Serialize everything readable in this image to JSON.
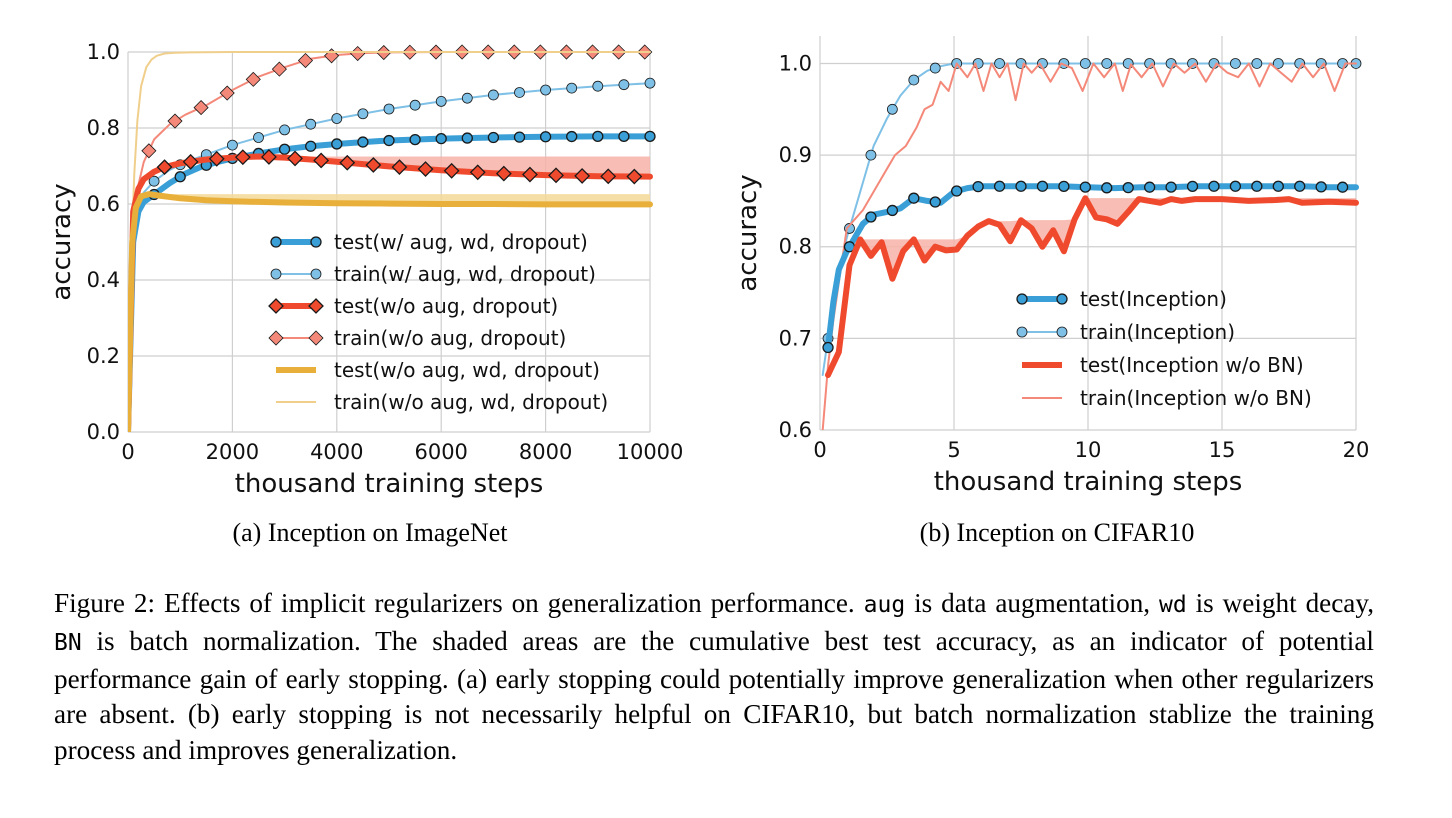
{
  "colors": {
    "blue": "#3a9fd6",
    "blue_light": "#7ec0e6",
    "red": "#f04a2e",
    "red_light": "#f4897a",
    "red_fill": "#f7b3a8",
    "orange": "#e8b03a",
    "orange_light": "#f0cf8c",
    "orange_fill": "#f4d898",
    "grid": "#cfcfcf"
  },
  "chart_data": [
    {
      "type": "line",
      "xlabel": "thousand training steps",
      "ylabel": "accuracy",
      "xlim": [
        0,
        10000
      ],
      "ylim": [
        0.0,
        1.0
      ],
      "xticks": [
        "0",
        "2000",
        "4000",
        "6000",
        "8000",
        "10000"
      ],
      "yticks": [
        "0.0",
        "0.2",
        "0.4",
        "0.6",
        "0.8",
        "1.0"
      ],
      "legend_position": "lower-right",
      "grid": true,
      "caption": "(a) Inception on ImageNet",
      "series": [
        {
          "name": "test(w/ aug, wd, dropout)",
          "style": "thick-circle",
          "color": "#3a9fd6",
          "x": [
            0,
            100,
            200,
            300,
            500,
            800,
            1100,
            1400,
            1700,
            2000,
            2500,
            3000,
            3500,
            4000,
            4500,
            5000,
            6000,
            7000,
            8000,
            9000,
            10000
          ],
          "y": [
            0.0,
            0.5,
            0.58,
            0.605,
            0.625,
            0.655,
            0.68,
            0.698,
            0.71,
            0.72,
            0.733,
            0.744,
            0.752,
            0.758,
            0.763,
            0.767,
            0.772,
            0.775,
            0.777,
            0.778,
            0.778
          ],
          "markers_x": [
            500,
            1000,
            1500,
            2000,
            2500,
            3000,
            3500,
            4000,
            4500,
            5000,
            5500,
            6000,
            6500,
            7000,
            7500,
            8000,
            8500,
            9000,
            9500,
            10000
          ]
        },
        {
          "name": "train(w/ aug, wd, dropout)",
          "style": "thin-circle",
          "color": "#7ec0e6",
          "x": [
            0,
            100,
            200,
            300,
            500,
            800,
            1100,
            1500,
            2000,
            2500,
            3000,
            3500,
            4000,
            5000,
            6000,
            7000,
            8000,
            9000,
            10000
          ],
          "y": [
            0.0,
            0.52,
            0.6,
            0.63,
            0.66,
            0.69,
            0.71,
            0.73,
            0.755,
            0.775,
            0.795,
            0.81,
            0.825,
            0.85,
            0.87,
            0.887,
            0.9,
            0.91,
            0.918
          ],
          "markers_x": [
            500,
            1000,
            1500,
            2000,
            2500,
            3000,
            3500,
            4000,
            4500,
            5000,
            5500,
            6000,
            6500,
            7000,
            7500,
            8000,
            8500,
            9000,
            9500,
            10000
          ]
        },
        {
          "name": "test(w/o aug, dropout)",
          "style": "thick-diamond",
          "color": "#f04a2e",
          "x": [
            0,
            100,
            200,
            300,
            500,
            700,
            1000,
            1500,
            2000,
            2500,
            3000,
            3500,
            4000,
            4500,
            5000,
            6000,
            7000,
            8000,
            9000,
            10000
          ],
          "y": [
            0.0,
            0.58,
            0.64,
            0.665,
            0.685,
            0.697,
            0.707,
            0.717,
            0.722,
            0.725,
            0.722,
            0.717,
            0.711,
            0.705,
            0.699,
            0.689,
            0.681,
            0.676,
            0.673,
            0.672
          ],
          "markers_x": [
            700,
            1200,
            1700,
            2200,
            2700,
            3200,
            3700,
            4200,
            4700,
            5200,
            5700,
            6200,
            6700,
            7200,
            7700,
            8200,
            8700,
            9200,
            9700
          ],
          "best_fill_y": 0.725
        },
        {
          "name": "train(w/o aug, dropout)",
          "style": "thin-diamond",
          "color": "#f4897a",
          "x": [
            0,
            100,
            200,
            300,
            500,
            800,
            1100,
            1500,
            2000,
            2500,
            3000,
            3500,
            4000,
            4500,
            5000,
            6000,
            7000,
            8000,
            9000,
            10000
          ],
          "y": [
            0.0,
            0.55,
            0.65,
            0.71,
            0.77,
            0.81,
            0.835,
            0.86,
            0.9,
            0.935,
            0.96,
            0.982,
            0.992,
            0.997,
            0.999,
            1.0,
            1.0,
            1.0,
            1.0,
            1.0
          ],
          "markers_x": [
            400,
            900,
            1400,
            1900,
            2400,
            2900,
            3400,
            3900,
            4400,
            4900,
            5400,
            5900,
            6400,
            6900,
            7400,
            7900,
            8400,
            8900,
            9400,
            9900
          ]
        },
        {
          "name": "test(w/o aug, wd, dropout)",
          "style": "thick",
          "color": "#e8b03a",
          "x": [
            0,
            80,
            150,
            250,
            400,
            600,
            1000,
            1500,
            2000,
            3000,
            4000,
            5000,
            6000,
            7000,
            8000,
            9000,
            10000
          ],
          "y": [
            0.0,
            0.5,
            0.59,
            0.62,
            0.626,
            0.622,
            0.615,
            0.61,
            0.607,
            0.604,
            0.602,
            0.601,
            0.6,
            0.6,
            0.599,
            0.599,
            0.599
          ],
          "best_fill_y": 0.626
        },
        {
          "name": "train(w/o aug, wd, dropout)",
          "style": "thin",
          "color": "#f0cf8c",
          "x": [
            0,
            60,
            120,
            180,
            250,
            350,
            450,
            550,
            700,
            900,
            1200,
            2000,
            4000,
            6000,
            8000,
            10000
          ],
          "y": [
            0.0,
            0.45,
            0.68,
            0.82,
            0.91,
            0.96,
            0.98,
            0.99,
            0.996,
            0.998,
            0.999,
            1.0,
            1.0,
            1.0,
            1.0,
            1.0
          ]
        }
      ]
    },
    {
      "type": "line",
      "xlabel": "thousand training steps",
      "ylabel": "accuracy",
      "xlim": [
        0,
        20
      ],
      "ylim": [
        0.6,
        1.03
      ],
      "xticks": [
        "0",
        "5",
        "10",
        "15",
        "20"
      ],
      "yticks": [
        "0.6",
        "0.7",
        "0.8",
        "0.9",
        "1.0"
      ],
      "legend_position": "lower-right",
      "grid": true,
      "caption": "(b) Inception on CIFAR10",
      "series": [
        {
          "name": "test(Inception)",
          "style": "thick-circle",
          "color": "#3a9fd6",
          "x": [
            0.3,
            0.5,
            0.7,
            1.0,
            1.3,
            1.6,
            2.0,
            2.5,
            3.0,
            3.5,
            4.0,
            4.5,
            5.0,
            5.5,
            6.0,
            7.0,
            8.0,
            9.0,
            10.0,
            11.0,
            12.0,
            13.0,
            14.0,
            15.0,
            16.0,
            17.0,
            18.0,
            19.0,
            20.0
          ],
          "y": [
            0.69,
            0.74,
            0.775,
            0.795,
            0.81,
            0.825,
            0.835,
            0.838,
            0.842,
            0.853,
            0.85,
            0.848,
            0.86,
            0.864,
            0.866,
            0.866,
            0.866,
            0.866,
            0.865,
            0.864,
            0.865,
            0.865,
            0.866,
            0.866,
            0.866,
            0.866,
            0.866,
            0.865,
            0.865
          ],
          "markers_x": [
            0.3,
            1.1,
            1.9,
            2.7,
            3.5,
            4.3,
            5.1,
            5.9,
            6.7,
            7.5,
            8.3,
            9.1,
            9.9,
            10.7,
            11.5,
            12.3,
            13.1,
            13.9,
            14.7,
            15.5,
            16.3,
            17.1,
            17.9,
            18.7,
            19.5
          ]
        },
        {
          "name": "train(Inception)",
          "style": "thin-circle",
          "color": "#7ec0e6",
          "x": [
            0.1,
            0.3,
            0.6,
            1.0,
            1.5,
            2.0,
            2.5,
            3.0,
            3.5,
            4.0,
            4.5,
            5.0,
            6.0,
            10.0,
            15.0,
            20.0
          ],
          "y": [
            0.66,
            0.7,
            0.76,
            0.81,
            0.86,
            0.91,
            0.94,
            0.965,
            0.982,
            0.992,
            0.997,
            1.0,
            1.0,
            1.0,
            1.0,
            1.0
          ],
          "markers_x": [
            0.3,
            1.1,
            1.9,
            2.7,
            3.5,
            4.3,
            5.1,
            5.9,
            6.7,
            7.5,
            8.3,
            9.1,
            9.9,
            10.7,
            11.5,
            12.3,
            13.1,
            13.9,
            14.7,
            15.5,
            16.3,
            17.1,
            17.9,
            18.7,
            19.5,
            20.0
          ]
        },
        {
          "name": "test(Inception w/o BN)",
          "style": "thick",
          "color": "#f04a2e",
          "x": [
            0.3,
            0.7,
            1.1,
            1.5,
            1.9,
            2.3,
            2.7,
            3.1,
            3.5,
            3.9,
            4.3,
            4.7,
            5.1,
            5.5,
            5.9,
            6.3,
            6.7,
            7.1,
            7.5,
            7.9,
            8.3,
            8.7,
            9.1,
            9.5,
            9.9,
            10.3,
            10.7,
            11.1,
            11.5,
            11.9,
            12.3,
            12.7,
            13.1,
            13.5,
            14.0,
            15.0,
            16.0,
            17.0,
            17.5,
            18.0,
            19.0,
            20.0
          ],
          "y": [
            0.66,
            0.685,
            0.78,
            0.808,
            0.79,
            0.805,
            0.765,
            0.795,
            0.808,
            0.785,
            0.8,
            0.796,
            0.797,
            0.812,
            0.822,
            0.828,
            0.824,
            0.806,
            0.829,
            0.82,
            0.8,
            0.818,
            0.795,
            0.83,
            0.853,
            0.832,
            0.83,
            0.825,
            0.838,
            0.852,
            0.85,
            0.848,
            0.852,
            0.85,
            0.852,
            0.852,
            0.85,
            0.851,
            0.852,
            0.848,
            0.849,
            0.848
          ],
          "best_fill": [
            [
              1.5,
              0.808
            ],
            [
              5.5,
              0.812
            ],
            [
              6.3,
              0.828
            ],
            [
              9.5,
              0.83
            ],
            [
              9.9,
              0.853
            ]
          ]
        },
        {
          "name": "train(Inception w/o BN)",
          "style": "thin",
          "color": "#f4897a",
          "x": [
            0.1,
            0.3,
            0.5,
            0.8,
            1.0,
            1.3,
            1.6,
            2.0,
            2.4,
            2.8,
            3.2,
            3.6,
            3.9,
            4.2,
            4.5,
            4.8,
            5.1,
            5.5,
            5.8,
            6.1,
            6.4,
            6.7,
            7.0,
            7.3,
            7.6,
            7.9,
            8.2,
            8.6,
            9.0,
            9.4,
            9.8,
            10.2,
            10.6,
            11.0,
            11.3,
            11.6,
            12.0,
            12.4,
            12.8,
            13.2,
            13.6,
            14.0,
            14.4,
            14.8,
            15.2,
            15.6,
            16.0,
            16.4,
            16.8,
            17.2,
            17.6,
            18.0,
            18.4,
            18.8,
            19.2,
            19.6,
            20.0
          ],
          "y": [
            0.6,
            0.67,
            0.72,
            0.78,
            0.82,
            0.83,
            0.84,
            0.86,
            0.88,
            0.9,
            0.91,
            0.93,
            0.95,
            0.955,
            0.98,
            0.97,
            1.0,
            0.985,
            1.0,
            0.97,
            1.0,
            0.985,
            1.0,
            0.96,
            1.0,
            0.99,
            1.0,
            0.98,
            1.0,
            0.995,
            0.97,
            1.0,
            0.985,
            1.0,
            0.97,
            0.999,
            0.985,
            1.0,
            0.975,
            1.0,
            0.99,
            1.0,
            0.98,
            1.0,
            0.99,
            0.985,
            1.0,
            0.975,
            1.0,
            0.99,
            0.98,
            1.0,
            0.985,
            1.0,
            0.97,
            1.0,
            1.0
          ]
        }
      ]
    }
  ],
  "caption": {
    "p1": "Figure 2: Effects of implicit regularizers on generalization performance. ",
    "aug": "aug",
    "p2": " is data augmentation, ",
    "wd": "wd",
    "p3": " is weight decay, ",
    "bn": "BN",
    "p4": " is batch normalization.  The shaded areas are the cumulative best test accuracy, as an indicator of potential performance gain of early stopping.  (a) early stopping could potentially improve generalization when other regularizers are absent. (b) early stopping is not necessarily helpful on CIFAR10, but batch normalization stablize the training process and improves generalization."
  }
}
